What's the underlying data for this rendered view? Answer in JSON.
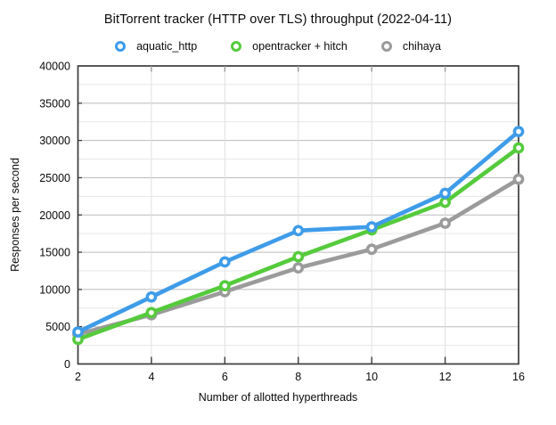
{
  "title": "BitTorrent tracker (HTTP over TLS) throughput (2022-04-11)",
  "axes": {
    "x_title": "Number of allotted hyperthreads",
    "y_title": "Responses per second"
  },
  "colors": {
    "aquatic_http": "#3E9CE9",
    "opentracker_hitch": "#55CB3C",
    "chihaya": "#9B9B9B",
    "grid_major": "#bbbbbb",
    "grid_minor": "#e7e7e7",
    "grid_vertical": "#e0e0e0",
    "axis_border": "#3c3c3c"
  },
  "chart_data": {
    "type": "line",
    "title": "BitTorrent tracker (HTTP over TLS) throughput (2022-04-11)",
    "xlabel": "Number of allotted hyperthreads",
    "ylabel": "Responses per second",
    "x": [
      2,
      4,
      6,
      8,
      10,
      12,
      16
    ],
    "x_tick_labels": [
      "2",
      "4",
      "6",
      "8",
      "10",
      "12",
      "16"
    ],
    "y_tick_labels": [
      "0",
      "5000",
      "10000",
      "15000",
      "20000",
      "25000",
      "30000",
      "35000",
      "40000"
    ],
    "ylim": [
      0,
      40000
    ],
    "y_major_step": 5000,
    "y_minor_step": 2500,
    "grid": true,
    "legend_position": "top",
    "series": [
      {
        "name": "aquatic_http",
        "color": "#3E9CE9",
        "values": [
          4300,
          9000,
          13700,
          17900,
          18400,
          22900,
          31200
        ]
      },
      {
        "name": "opentracker + hitch",
        "color": "#55CB3C",
        "values": [
          3300,
          6900,
          10500,
          14400,
          18000,
          21700,
          29000
        ]
      },
      {
        "name": "chihaya",
        "color": "#9B9B9B",
        "values": [
          4000,
          6600,
          9700,
          12900,
          15400,
          18900,
          24800
        ]
      }
    ]
  }
}
